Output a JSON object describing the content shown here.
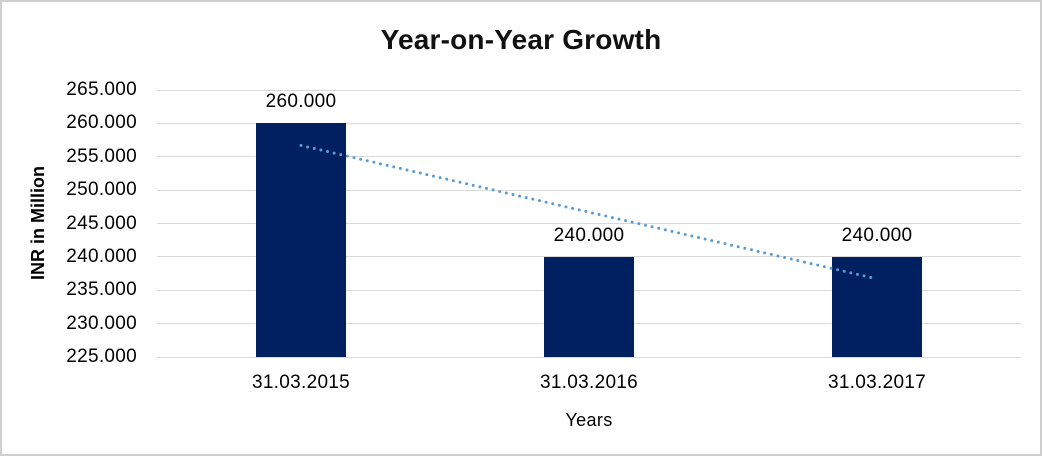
{
  "chart_data": {
    "type": "bar",
    "title": "Year-on-Year Growth",
    "xlabel": "Years",
    "ylabel": "INR in Million",
    "categories": [
      "31.03.2015",
      "31.03.2016",
      "31.03.2017"
    ],
    "values": [
      260,
      240,
      240
    ],
    "data_labels": [
      "260.000",
      "240.000",
      "240.000"
    ],
    "ylim": [
      225,
      265
    ],
    "ytick_step": 5,
    "yticks": [
      {
        "value": 225,
        "label": "225.000"
      },
      {
        "value": 230,
        "label": "230.000"
      },
      {
        "value": 235,
        "label": "235.000"
      },
      {
        "value": 240,
        "label": "240.000"
      },
      {
        "value": 245,
        "label": "245.000"
      },
      {
        "value": 250,
        "label": "250.000"
      },
      {
        "value": 255,
        "label": "255.000"
      },
      {
        "value": 260,
        "label": "260.000"
      },
      {
        "value": 265,
        "label": "265.000"
      }
    ],
    "grid": "horizontal",
    "legend": "none",
    "colors": {
      "bar": "#002060",
      "trendline": "#5b9bd5",
      "gridline": "#d9d9d9",
      "text": "#000000",
      "frame_border": "#cfcfcf"
    },
    "trendline": {
      "kind": "linear",
      "style": "dotted",
      "x_categories": [
        0,
        2
      ],
      "values": [
        256.7,
        236.7
      ]
    }
  }
}
